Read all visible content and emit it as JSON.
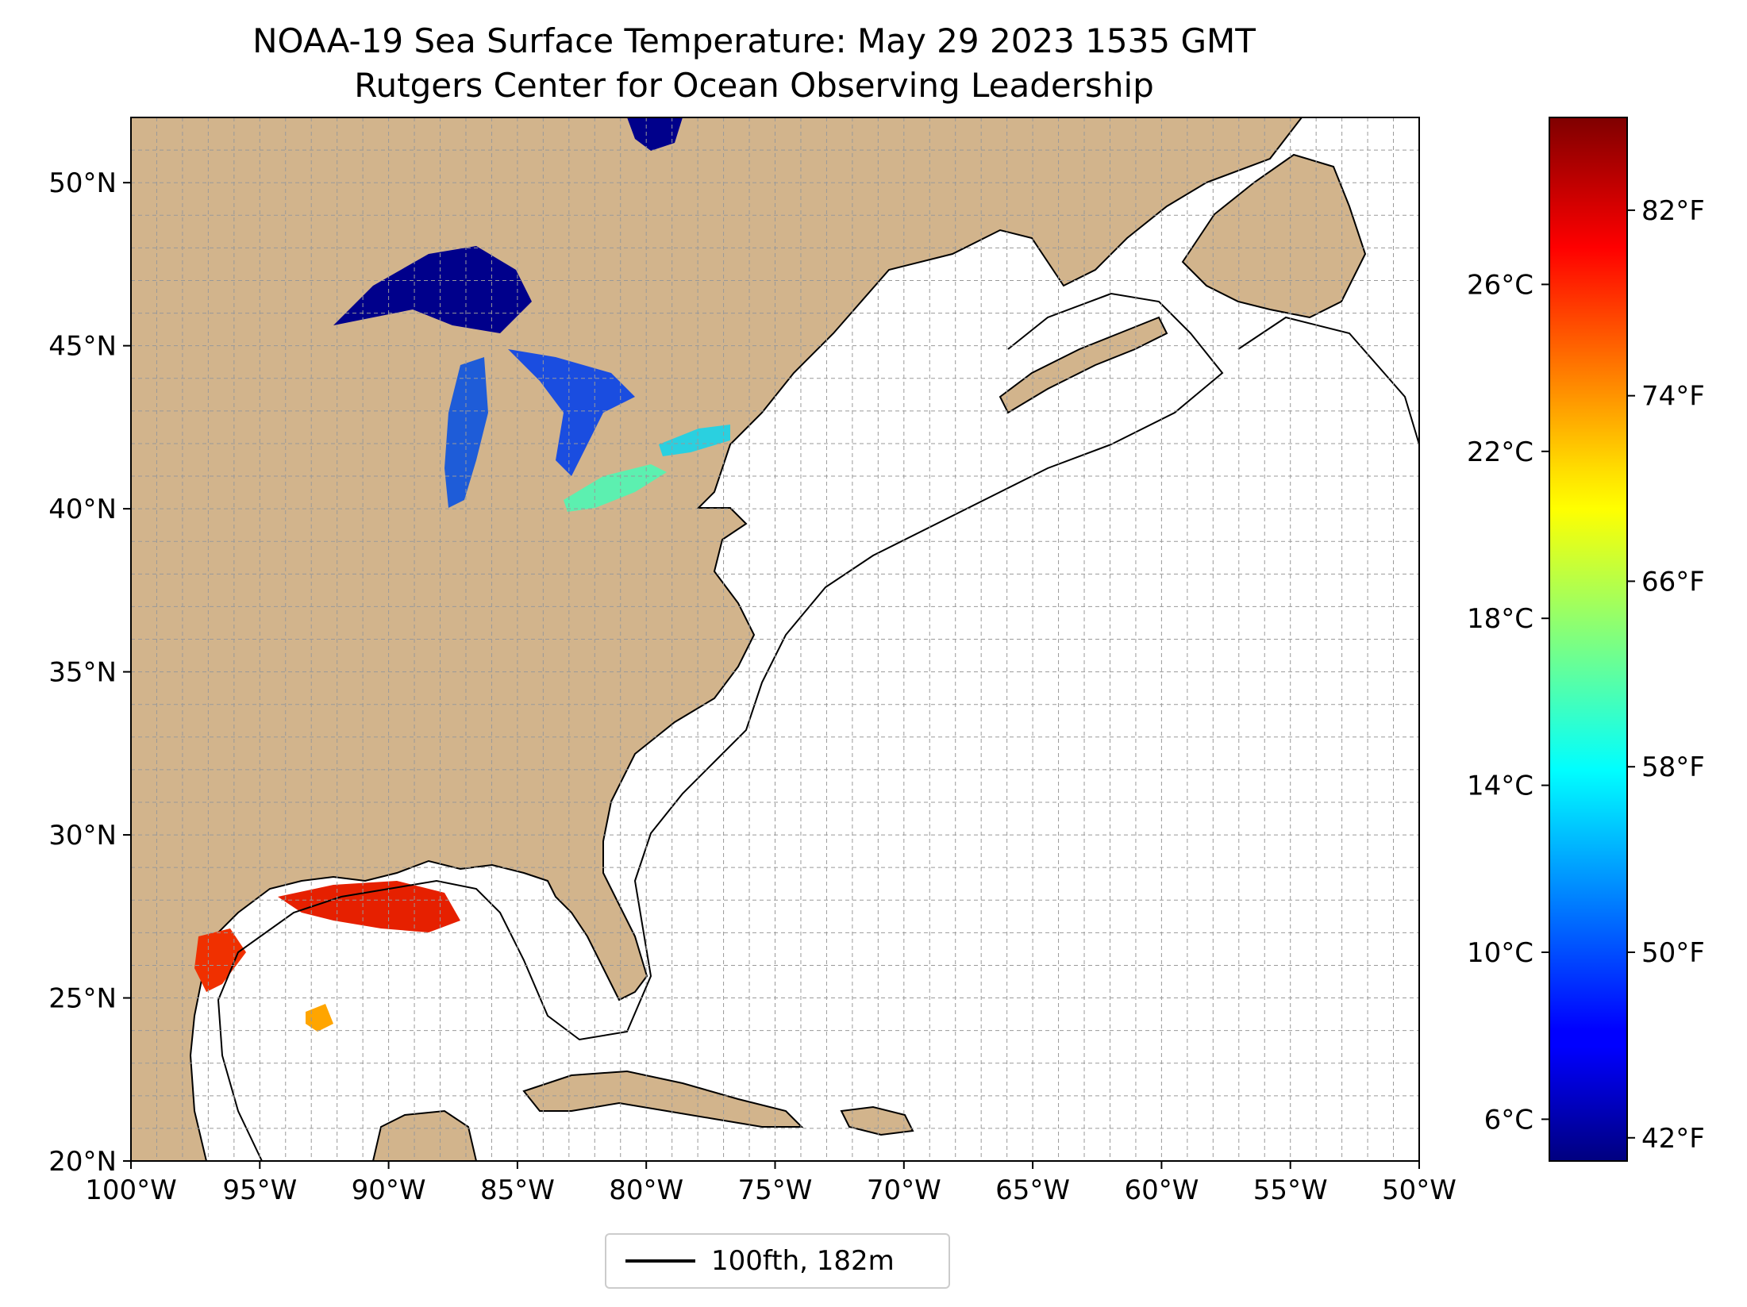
{
  "title": {
    "line1": "NOAA-19 Sea Surface Temperature: May 29 2023 1535 GMT",
    "line2": "Rutgers Center for Ocean Observing Leadership"
  },
  "map": {
    "projection": "lat-lon",
    "lon_range": [
      -100,
      -50
    ],
    "lat_range": [
      20,
      52
    ],
    "grid": true,
    "land_color": "#d2b48c",
    "water_color": "#ffffff",
    "lake_color": "#96b4e6",
    "x_ticks": [
      "100°W",
      "95°W",
      "90°W",
      "85°W",
      "80°W",
      "75°W",
      "70°W",
      "65°W",
      "60°W",
      "55°W",
      "50°W"
    ],
    "y_ticks": [
      "20°N",
      "25°N",
      "30°N",
      "35°N",
      "40°N",
      "45°N",
      "50°N"
    ],
    "sst_regions": [
      {
        "name": "Lake Superior",
        "temp_f": 41
      },
      {
        "name": "Lake Michigan",
        "temp_f": 50
      },
      {
        "name": "Lake Huron",
        "temp_f": 48
      },
      {
        "name": "Lake Erie",
        "temp_f": 60
      },
      {
        "name": "Lake Ontario",
        "temp_f": 55
      },
      {
        "name": "Northern Gulf of Mexico",
        "temp_f": 82
      }
    ]
  },
  "colorbar": {
    "colormap": "jet",
    "range_c": [
      5,
      30
    ],
    "celsius_ticks": [
      "6°C",
      "10°C",
      "14°C",
      "18°C",
      "22°C",
      "26°C"
    ],
    "fahrenheit_ticks": [
      "42°F",
      "50°F",
      "58°F",
      "66°F",
      "74°F",
      "82°F"
    ]
  },
  "legend": {
    "label": "100fth, 182m"
  }
}
